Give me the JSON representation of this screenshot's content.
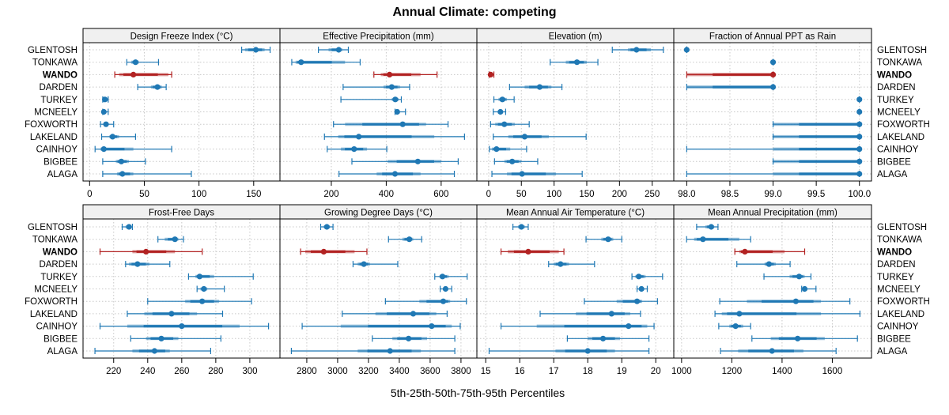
{
  "chart_data": {
    "type": "dotplot-percentile-intervals",
    "title": "Annual Climate: competing",
    "xlabel": "5th-25th-50th-75th-95th Percentiles",
    "ylabel": "",
    "categories": [
      "GLENTOSH",
      "TONKAWA",
      "WANDO",
      "DARDEN",
      "TURKEY",
      "MCNEELY",
      "FOXWORTH",
      "LAKELAND",
      "CAINHOY",
      "BIGBEE",
      "ALAGA"
    ],
    "highlight": "WANDO",
    "colors": {
      "default": "#1f78b4",
      "highlight": "#b22222",
      "strip_bg": "#f0f0f0",
      "grid": "#c8c8c8"
    },
    "grid": true,
    "percentile_keys": [
      "p5",
      "p25",
      "p50",
      "p75",
      "p95"
    ],
    "panels": [
      {
        "title": "Design Freeze Index (°C)",
        "xlim": [
          -6,
          174
        ],
        "ticks": [
          0,
          50,
          100,
          150
        ],
        "values": [
          [
            139,
            142,
            152,
            160,
            165
          ],
          [
            34,
            38,
            42,
            45,
            63
          ],
          [
            23,
            27,
            40,
            72,
            75
          ],
          [
            44,
            56,
            62,
            66,
            70
          ],
          [
            12,
            13,
            14,
            15,
            17
          ],
          [
            12,
            12.5,
            13,
            14,
            17
          ],
          [
            10,
            13,
            15,
            17,
            22
          ],
          [
            11,
            18,
            21,
            27,
            42
          ],
          [
            5,
            10,
            13,
            40,
            75
          ],
          [
            12,
            24,
            29,
            36,
            51
          ],
          [
            12,
            25,
            30,
            40,
            93
          ]
        ]
      },
      {
        "title": "Effective Precipitation (mm)",
        "xlim": [
          13,
          730
        ],
        "ticks": [
          200,
          400,
          600
        ],
        "values": [
          [
            153,
            190,
            227,
            240,
            262
          ],
          [
            56,
            70,
            90,
            250,
            305
          ],
          [
            355,
            380,
            412,
            525,
            585
          ],
          [
            243,
            390,
            420,
            450,
            485
          ],
          [
            235,
            420,
            433,
            445,
            455
          ],
          [
            432,
            435,
            440,
            448,
            470
          ],
          [
            208,
            250,
            460,
            545,
            625
          ],
          [
            175,
            225,
            300,
            575,
            685
          ],
          [
            185,
            235,
            283,
            330,
            402
          ],
          [
            275,
            405,
            515,
            600,
            662
          ],
          [
            228,
            365,
            432,
            525,
            648
          ]
        ]
      },
      {
        "title": "Elevation (m)",
        "xlim": [
          -18,
          283
        ],
        "ticks": [
          0,
          50,
          100,
          150,
          200,
          250
        ],
        "values": [
          [
            189,
            213,
            226,
            248,
            267
          ],
          [
            94,
            118,
            135,
            150,
            167
          ],
          [
            1,
            2,
            3,
            5,
            8
          ],
          [
            32,
            55,
            78,
            96,
            112
          ],
          [
            8,
            15,
            21,
            28,
            39
          ],
          [
            7,
            14,
            18,
            22,
            26
          ],
          [
            3,
            10,
            24,
            40,
            62
          ],
          [
            7,
            30,
            55,
            92,
            149
          ],
          [
            1,
            5,
            12,
            33,
            58
          ],
          [
            9,
            24,
            36,
            50,
            75
          ],
          [
            5,
            28,
            51,
            103,
            143
          ]
        ]
      },
      {
        "title": "Fraction of Annual PPT as Rain",
        "xlim": [
          97.85,
          100.14
        ],
        "ticks": [
          98.0,
          98.5,
          99.0,
          99.5,
          100.0
        ],
        "tick_labels": [
          "98.0",
          "98.5",
          "99.0",
          "99.5",
          "100.0"
        ],
        "values": [
          [
            98,
            98,
            98,
            98,
            98
          ],
          [
            99,
            99,
            99,
            99,
            99
          ],
          [
            98,
            98,
            99,
            99,
            99
          ],
          [
            98,
            98,
            99,
            99,
            99
          ],
          [
            100,
            100,
            100,
            100,
            100
          ],
          [
            100,
            100,
            100,
            100,
            100
          ],
          [
            99,
            99,
            100,
            100,
            100
          ],
          [
            99,
            99,
            100,
            100,
            100
          ],
          [
            98,
            99,
            100,
            100,
            100
          ],
          [
            99,
            99,
            100,
            100,
            100
          ],
          [
            98,
            99,
            100,
            100,
            100
          ]
        ]
      },
      {
        "title": "Frost-Free Days",
        "xlim": [
          202,
          317.7
        ],
        "ticks": [
          220,
          240,
          260,
          280,
          300
        ],
        "values": [
          [
            225,
            227,
            229,
            230,
            231
          ],
          [
            246,
            250,
            256,
            258,
            261
          ],
          [
            212,
            231,
            239,
            256,
            272
          ],
          [
            227,
            229,
            234,
            241,
            253
          ],
          [
            264,
            268,
            270.5,
            279,
            302
          ],
          [
            269,
            271,
            273,
            275,
            285
          ],
          [
            240,
            262,
            272,
            282,
            301
          ],
          [
            228,
            238,
            254,
            269,
            284
          ],
          [
            212,
            228,
            260,
            294,
            311
          ],
          [
            230,
            239,
            248,
            258,
            283
          ],
          [
            209,
            231,
            244,
            253,
            277
          ]
        ]
      },
      {
        "title": "Growing Degree Days (°C)",
        "xlim": [
          2626,
          3903
        ],
        "ticks": [
          2800,
          3000,
          3200,
          3400,
          3600,
          3800
        ],
        "values": [
          [
            2890,
            2910,
            2930,
            2950,
            2970
          ],
          [
            3330,
            3420,
            3465,
            3490,
            3545
          ],
          [
            2760,
            2790,
            2910,
            3110,
            3190
          ],
          [
            3100,
            3130,
            3170,
            3210,
            3390
          ],
          [
            3630,
            3660,
            3680,
            3720,
            3840
          ],
          [
            3665,
            3685,
            3700,
            3715,
            3740
          ],
          [
            3310,
            3530,
            3685,
            3730,
            3835
          ],
          [
            3030,
            3245,
            3490,
            3640,
            3710
          ],
          [
            2770,
            3020,
            3610,
            3740,
            3795
          ],
          [
            3225,
            3355,
            3460,
            3580,
            3760
          ],
          [
            2700,
            3130,
            3340,
            3540,
            3760
          ]
        ]
      },
      {
        "title": "Mean Annual Air Temperature (°C)",
        "xlim": [
          14.74,
          20.53
        ],
        "ticks": [
          15,
          16,
          17,
          18,
          19,
          20
        ],
        "values": [
          [
            15.8,
            15.95,
            16.05,
            16.15,
            16.25
          ],
          [
            17.95,
            18.4,
            18.6,
            18.75,
            19.0
          ],
          [
            15.45,
            15.65,
            16.25,
            17.15,
            17.3
          ],
          [
            16.85,
            17.0,
            17.2,
            17.45,
            18.2
          ],
          [
            19.3,
            19.4,
            19.5,
            19.7,
            20.2
          ],
          [
            19.45,
            19.52,
            19.58,
            19.65,
            19.75
          ],
          [
            17.9,
            18.85,
            19.45,
            19.6,
            20.05
          ],
          [
            16.6,
            17.65,
            18.7,
            19.25,
            19.55
          ],
          [
            15.45,
            16.5,
            19.2,
            19.75,
            19.95
          ],
          [
            17.4,
            18.0,
            18.45,
            18.95,
            19.8
          ],
          [
            15.1,
            17.05,
            18.0,
            18.8,
            19.8
          ]
        ]
      },
      {
        "title": "Mean Annual Precipitation (mm)",
        "xlim": [
          969,
          1756
        ],
        "ticks": [
          1000,
          1200,
          1400,
          1600
        ],
        "values": [
          [
            1060,
            1095,
            1118,
            1130,
            1145
          ],
          [
            1020,
            1050,
            1085,
            1230,
            1275
          ],
          [
            1212,
            1230,
            1252,
            1410,
            1490
          ],
          [
            1220,
            1330,
            1348,
            1375,
            1432
          ],
          [
            1328,
            1430,
            1468,
            1490,
            1515
          ],
          [
            1478,
            1485,
            1490,
            1500,
            1535
          ],
          [
            1152,
            1260,
            1455,
            1555,
            1670
          ],
          [
            1133,
            1160,
            1230,
            1555,
            1710
          ],
          [
            1148,
            1190,
            1215,
            1245,
            1275
          ],
          [
            1280,
            1355,
            1462,
            1570,
            1700
          ],
          [
            1155,
            1225,
            1360,
            1485,
            1615
          ]
        ]
      }
    ]
  }
}
